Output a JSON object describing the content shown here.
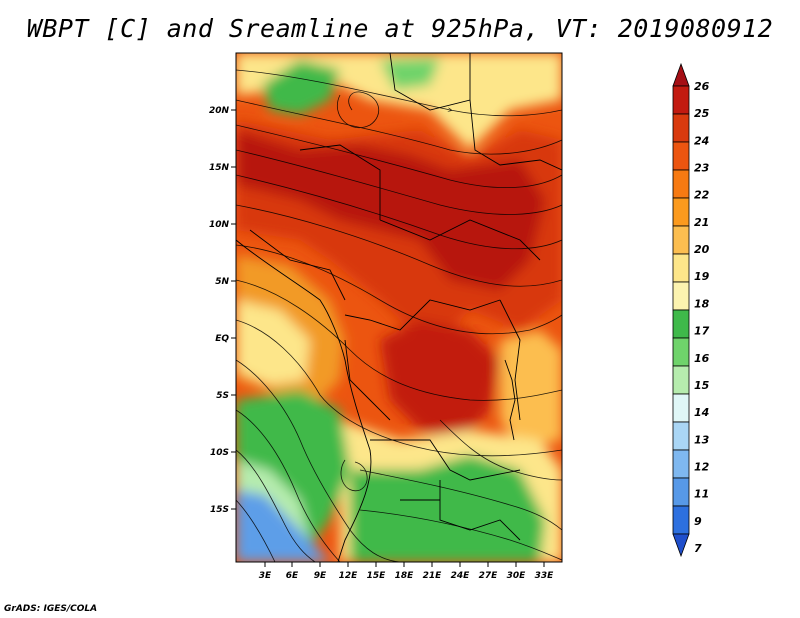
{
  "title": "WBPT [C] and Sreamline at 925hPa, VT: 2019080912",
  "credit": "GrADS: IGES/COLA",
  "lat_labels": [
    "20N",
    "15N",
    "10N",
    "5N",
    "EQ",
    "5S",
    "10S",
    "15S"
  ],
  "lon_labels": [
    "3E",
    "6E",
    "9E",
    "12E",
    "15E",
    "18E",
    "21E",
    "24E",
    "27E",
    "30E",
    "33E"
  ],
  "colorbar": {
    "levels": [
      "26",
      "25",
      "24",
      "23",
      "22",
      "21",
      "20",
      "19",
      "18",
      "17",
      "16",
      "15",
      "14",
      "13",
      "12",
      "11",
      "9",
      "7"
    ],
    "colors": [
      "#a50f15",
      "#c21a10",
      "#d93a0e",
      "#ec5510",
      "#f77a12",
      "#fb9a1e",
      "#fcbe50",
      "#fde68a",
      "#fcf3b0",
      "#3fb94a",
      "#6fd36b",
      "#b6ecae",
      "#e0f7f7",
      "#aad6f5",
      "#7fb8f0",
      "#5799e8",
      "#2d70df",
      "#1f4fcc"
    ]
  },
  "fields": {
    "hot_core": "#d8380d",
    "very_hot": "#b7170f",
    "warm": "#f29a28",
    "mild": "#fde68a",
    "cool_green": "#3fb94a",
    "light_green": "#8fdc82",
    "cold_blue": "#5d9ee8"
  }
}
